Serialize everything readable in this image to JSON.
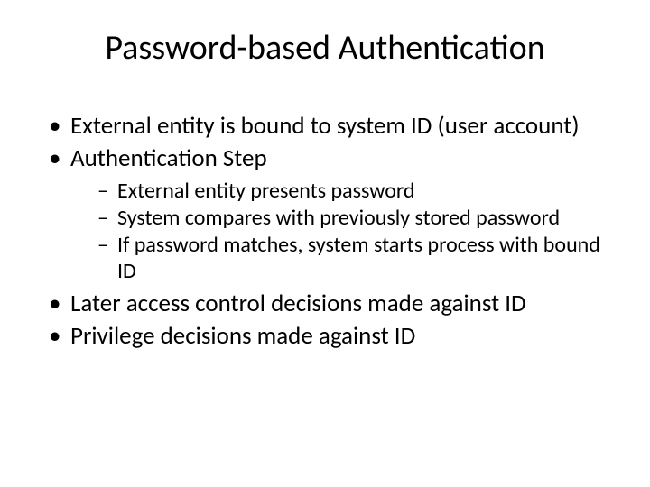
{
  "slide": {
    "title": "Password-based Authentication",
    "background_color": "#ffffff",
    "text_color": "#000000",
    "title_fontsize": 38,
    "body_fontsize_level1": 27,
    "body_fontsize_level2": 24,
    "font_family": "Calibri",
    "bullets": [
      {
        "text": "External entity is bound to system ID (user account)"
      },
      {
        "text": "Authentication Step",
        "children": [
          {
            "text": "External entity presents password"
          },
          {
            "text": "System compares with previously stored password"
          },
          {
            "text": "If password matches, system starts process with bound ID"
          }
        ]
      },
      {
        "text": "Later access control decisions made against ID"
      },
      {
        "text": "Privilege decisions made against ID"
      }
    ]
  }
}
